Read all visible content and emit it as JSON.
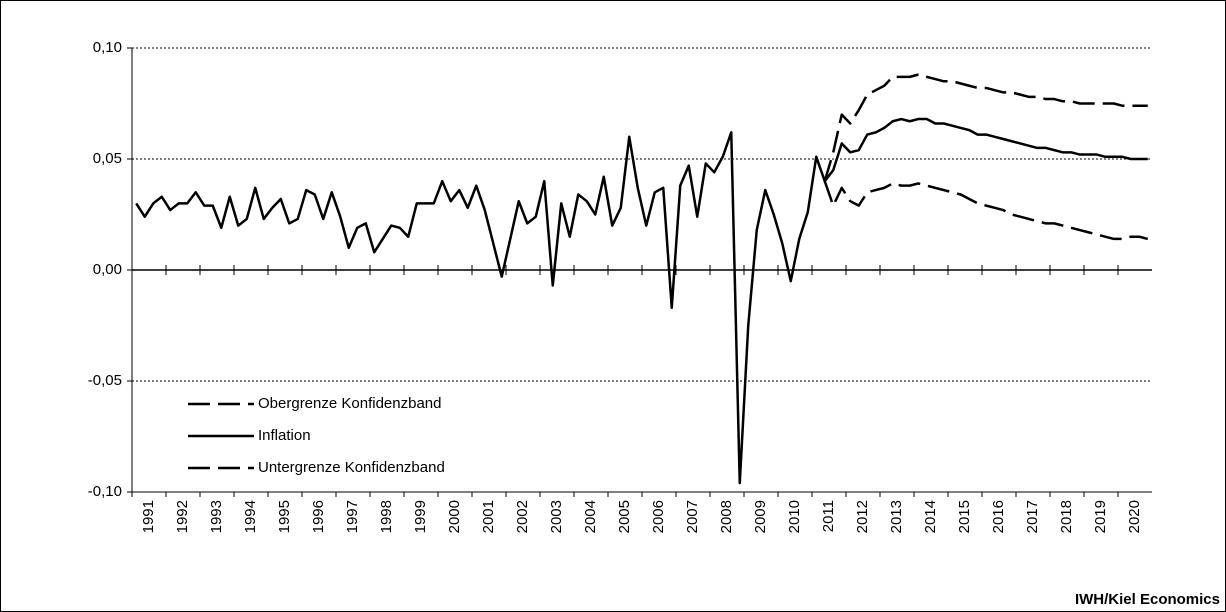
{
  "chart_data": {
    "type": "line",
    "categories": [
      "1991",
      null,
      null,
      null,
      "1992",
      null,
      null,
      null,
      "1993",
      null,
      null,
      null,
      "1994",
      null,
      null,
      null,
      "1995",
      null,
      null,
      null,
      "1996",
      null,
      null,
      null,
      "1997",
      null,
      null,
      null,
      "1998",
      null,
      null,
      null,
      "1999",
      null,
      null,
      null,
      "2000",
      null,
      null,
      null,
      "2001",
      null,
      null,
      null,
      "2002",
      null,
      null,
      null,
      "2003",
      null,
      null,
      null,
      "2004",
      null,
      null,
      null,
      "2005",
      null,
      null,
      null,
      "2006",
      null,
      null,
      null,
      "2007",
      null,
      null,
      null,
      "2008",
      null,
      null,
      null,
      "2009",
      null,
      null,
      null,
      "2010",
      null,
      null,
      null,
      "2011",
      null,
      null,
      null,
      "2012",
      null,
      null,
      null,
      "2013",
      null,
      null,
      null,
      "2014",
      null,
      null,
      null,
      "2015",
      null,
      null,
      null,
      "2016",
      null,
      null,
      null,
      "2017",
      null,
      null,
      null,
      "2018",
      null,
      null,
      null,
      "2019",
      null,
      null,
      null,
      "2020",
      null,
      null,
      null
    ],
    "series": [
      {
        "name": "Obergrenze Konfidenzband",
        "color": "#000000",
        "style": "dashed",
        "values": [
          null,
          null,
          null,
          null,
          null,
          null,
          null,
          null,
          null,
          null,
          null,
          null,
          null,
          null,
          null,
          null,
          null,
          null,
          null,
          null,
          null,
          null,
          null,
          null,
          null,
          null,
          null,
          null,
          null,
          null,
          null,
          null,
          null,
          null,
          null,
          null,
          null,
          null,
          null,
          null,
          null,
          null,
          null,
          null,
          null,
          null,
          null,
          null,
          null,
          null,
          null,
          null,
          null,
          null,
          null,
          null,
          null,
          null,
          null,
          null,
          null,
          null,
          null,
          null,
          null,
          null,
          null,
          null,
          null,
          null,
          null,
          null,
          null,
          null,
          null,
          null,
          null,
          null,
          null,
          null,
          null,
          0.04,
          0.053,
          0.07,
          0.066,
          0.072,
          0.079,
          0.081,
          0.083,
          0.087,
          0.087,
          0.087,
          0.088,
          0.087,
          0.086,
          0.085,
          0.085,
          0.084,
          0.083,
          0.082,
          0.082,
          0.081,
          0.08,
          0.08,
          0.079,
          0.078,
          0.078,
          0.077,
          0.077,
          0.076,
          0.076,
          0.075,
          0.075,
          0.075,
          0.075,
          0.075,
          0.074,
          0.074,
          0.074,
          0.074
        ]
      },
      {
        "name": "Inflation",
        "color": "#000000",
        "style": "solid",
        "values": [
          0.03,
          0.024,
          0.03,
          0.033,
          0.027,
          0.03,
          0.03,
          0.035,
          0.029,
          0.029,
          0.019,
          0.033,
          0.02,
          0.023,
          0.037,
          0.023,
          0.028,
          0.032,
          0.021,
          0.023,
          0.036,
          0.034,
          0.023,
          0.035,
          0.024,
          0.01,
          0.019,
          0.021,
          0.008,
          0.014,
          0.02,
          0.019,
          0.015,
          0.03,
          0.03,
          0.03,
          0.04,
          0.031,
          0.036,
          0.028,
          0.038,
          0.027,
          0.012,
          -0.003,
          0.014,
          0.031,
          0.021,
          0.024,
          0.04,
          -0.007,
          0.03,
          0.015,
          0.034,
          0.031,
          0.025,
          0.042,
          0.02,
          0.028,
          0.06,
          0.037,
          0.02,
          0.035,
          0.037,
          -0.017,
          0.038,
          0.047,
          0.024,
          0.048,
          0.044,
          0.051,
          0.062,
          -0.096,
          -0.025,
          0.018,
          0.036,
          0.025,
          0.012,
          -0.005,
          0.014,
          0.026,
          0.051,
          0.04,
          0.045,
          0.057,
          0.053,
          0.054,
          0.061,
          0.062,
          0.064,
          0.067,
          0.068,
          0.067,
          0.068,
          0.068,
          0.066,
          0.066,
          0.065,
          0.064,
          0.063,
          0.061,
          0.061,
          0.06,
          0.059,
          0.058,
          0.057,
          0.056,
          0.055,
          0.055,
          0.054,
          0.053,
          0.053,
          0.052,
          0.052,
          0.052,
          0.051,
          0.051,
          0.051,
          0.05,
          0.05,
          0.05
        ]
      },
      {
        "name": "Untergrenze Konfidenzband",
        "color": "#000000",
        "style": "dashed",
        "values": [
          null,
          null,
          null,
          null,
          null,
          null,
          null,
          null,
          null,
          null,
          null,
          null,
          null,
          null,
          null,
          null,
          null,
          null,
          null,
          null,
          null,
          null,
          null,
          null,
          null,
          null,
          null,
          null,
          null,
          null,
          null,
          null,
          null,
          null,
          null,
          null,
          null,
          null,
          null,
          null,
          null,
          null,
          null,
          null,
          null,
          null,
          null,
          null,
          null,
          null,
          null,
          null,
          null,
          null,
          null,
          null,
          null,
          null,
          null,
          null,
          null,
          null,
          null,
          null,
          null,
          null,
          null,
          null,
          null,
          null,
          null,
          null,
          null,
          null,
          null,
          null,
          null,
          null,
          null,
          null,
          null,
          0.04,
          0.029,
          0.037,
          0.031,
          0.029,
          0.035,
          0.036,
          0.037,
          0.039,
          0.038,
          0.038,
          0.039,
          0.038,
          0.037,
          0.036,
          0.035,
          0.034,
          0.032,
          0.03,
          0.029,
          0.028,
          0.027,
          0.025,
          0.024,
          0.023,
          0.022,
          0.021,
          0.021,
          0.02,
          0.019,
          0.018,
          0.017,
          0.016,
          0.015,
          0.014,
          0.014,
          0.015,
          0.015,
          0.014
        ]
      }
    ],
    "ylim": [
      -0.1,
      0.1
    ],
    "yticks": [
      {
        "value": -0.1,
        "label": "-0,10"
      },
      {
        "value": -0.05,
        "label": "-0,05"
      },
      {
        "value": 0,
        "label": "0,00"
      },
      {
        "value": 0.05,
        "label": "0,05"
      },
      {
        "value": 0.1,
        "label": "0,10"
      }
    ],
    "grid": true,
    "legend": "lower left",
    "source": "IWH/Kiel Economics"
  }
}
